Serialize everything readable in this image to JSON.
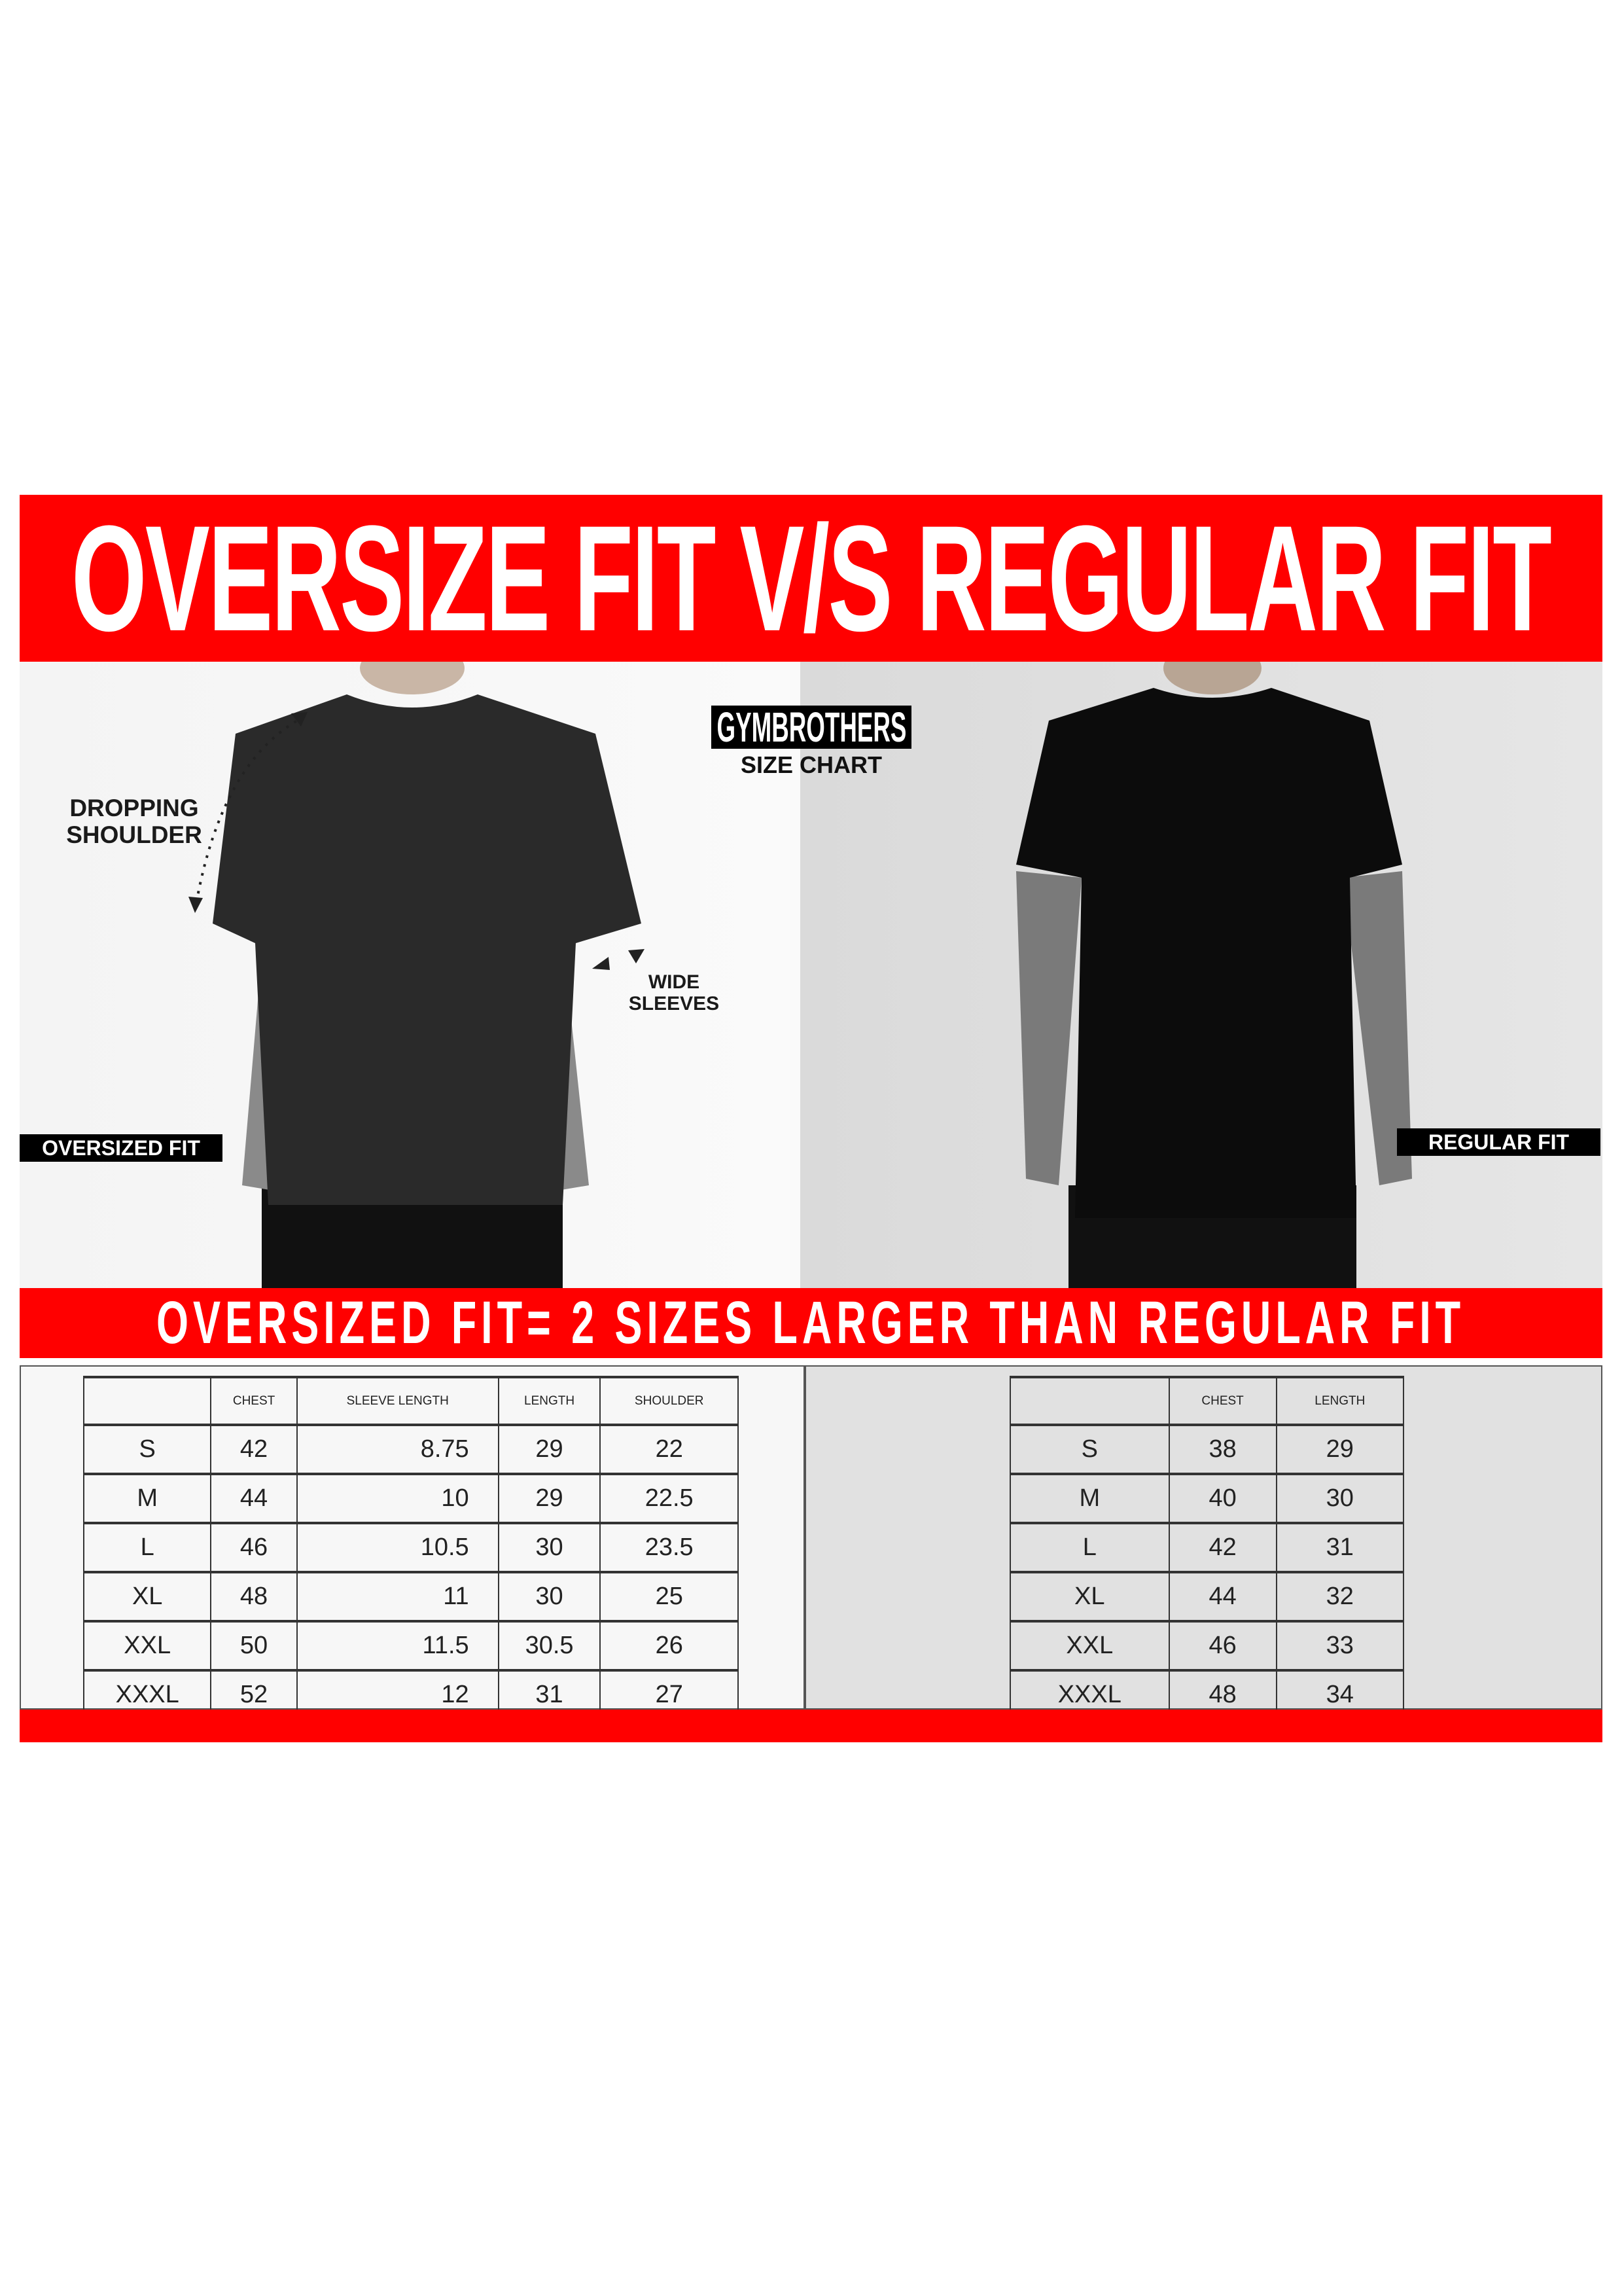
{
  "title": "OVERSIZE FIT V/S REGULAR FIT",
  "subtitle": "OVERSIZED FIT= 2 SIZES LARGER THAN REGULAR FIT",
  "brand": {
    "name": "GYMBROTHERS",
    "tagline": "SIZE CHART"
  },
  "annotations": {
    "dropping_shoulder": "DROPPING\nSHOULDER",
    "wide_sleeves": "WIDE\nSLEEVES"
  },
  "labels": {
    "oversized": "OVERSIZED FIT",
    "regular": "REGULAR FIT"
  },
  "colors": {
    "accent": "#ff0000",
    "text": "#222222",
    "label_bg": "#000000"
  },
  "oversized_table": {
    "headers": [
      "",
      "CHEST",
      "SLEEVE LENGTH",
      "LENGTH",
      "SHOULDER"
    ],
    "rows": [
      [
        "S",
        "42",
        "8.75",
        "29",
        "22"
      ],
      [
        "M",
        "44",
        "10",
        "29",
        "22.5"
      ],
      [
        "L",
        "46",
        "10.5",
        "30",
        "23.5"
      ],
      [
        "XL",
        "48",
        "11",
        "30",
        "25"
      ],
      [
        "XXL",
        "50",
        "11.5",
        "30.5",
        "26"
      ],
      [
        "XXXL",
        "52",
        "12",
        "31",
        "27"
      ]
    ]
  },
  "regular_table": {
    "headers": [
      "",
      "CHEST",
      "LENGTH"
    ],
    "rows": [
      [
        "S",
        "38",
        "29"
      ],
      [
        "M",
        "40",
        "30"
      ],
      [
        "L",
        "42",
        "31"
      ],
      [
        "XL",
        "44",
        "32"
      ],
      [
        "XXL",
        "46",
        "33"
      ],
      [
        "XXXL",
        "48",
        "34"
      ]
    ]
  }
}
